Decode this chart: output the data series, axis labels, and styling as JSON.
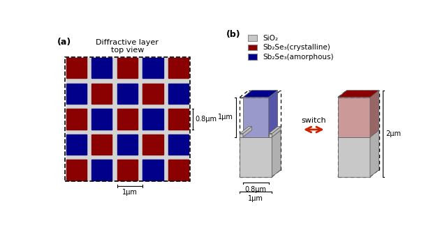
{
  "title_a": "Diffractive layer\ntop view",
  "label_a": "(a)",
  "label_b": "(b)",
  "grid_pattern": [
    [
      0,
      1,
      0,
      1,
      0
    ],
    [
      1,
      0,
      1,
      0,
      1
    ],
    [
      0,
      1,
      0,
      1,
      0
    ],
    [
      1,
      0,
      1,
      0,
      1
    ],
    [
      0,
      1,
      0,
      1,
      0
    ]
  ],
  "color_blue": "#00008b",
  "color_red": "#8b0000",
  "color_gray": "#d3d3d3",
  "annotation_08": "0.8μm",
  "annotation_1": "1μm",
  "annotation_2": "2μm",
  "annotation_switch": "switch",
  "legend_sio2": "SiO₂",
  "legend_cryst": "Sb₂Se₃(crystalline)",
  "legend_amorph": "Sb₂Se₃(amorphous)",
  "sio2_color": "#c8c8c8",
  "cryst_color": "#8b0000",
  "amorph_color": "#00008b",
  "background": "#ffffff"
}
